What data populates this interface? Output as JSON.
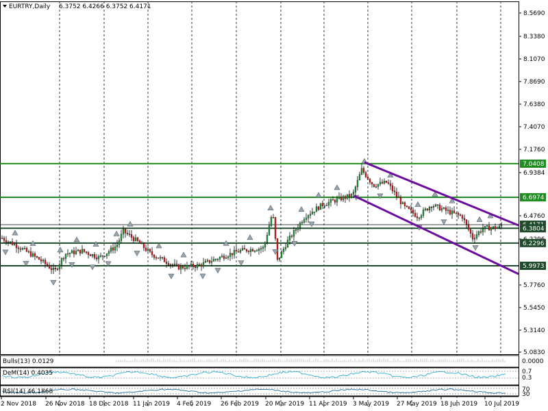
{
  "header": {
    "symbol": "EURTRY,Daily",
    "ohlc": "6.3752 6.4266 6.3752 6.4171"
  },
  "colors": {
    "hline": "#1e8c1e",
    "hline_dark": "#1f4a2c",
    "channel": "#6b0c9c",
    "bull": "#1f9a3a",
    "bear": "#e01a1a",
    "cyan": "#2aaecf"
  },
  "price_axis": {
    "ticks": [
      "8.5690",
      "8.3380",
      "8.1070",
      "7.8690",
      "7.6380",
      "7.4070",
      "7.1760",
      "6.9384",
      "6.4760",
      "6.2296",
      "5.7760",
      "5.5450",
      "5.3140",
      "5.0830"
    ],
    "tags": [
      {
        "label": "7.0408",
        "value": 7.0408,
        "color": "#1e8c1e"
      },
      {
        "label": "6.6974",
        "value": 6.6974,
        "color": "#1e8c1e"
      },
      {
        "label": "6.4171",
        "value": 6.4171,
        "color": "#1f4a2c"
      },
      {
        "label": "6.3804",
        "value": 6.3804,
        "color": "#1f4a2c"
      },
      {
        "label": "6.2296",
        "value": 6.2296,
        "color": "#1f4a2c"
      },
      {
        "label": "5.9973",
        "value": 5.9973,
        "color": "#1f4a2c"
      }
    ]
  },
  "date_axis": {
    "labels": [
      "2 Nov 2018",
      "26 Nov 2018",
      "18 Dec 2018",
      "11 Jan 2019",
      "4 Feb 2019",
      "26 Feb 2019",
      "20 Mar 2019",
      "11 Apr 2019",
      "3 May 2019",
      "27 May 2019",
      "18 Jun 2019",
      "10 Jul 2019"
    ]
  },
  "indicators": {
    "bulls": {
      "label": "Bulls(13) 0.0129",
      "scale": "0.0000"
    },
    "dem": {
      "label": "DeM(14) 0.4035",
      "levels": [
        "0.7",
        "0.3"
      ]
    },
    "rsi": {
      "label": "RSI(14) 46.1868",
      "levels": [
        "70",
        "30"
      ]
    }
  }
}
